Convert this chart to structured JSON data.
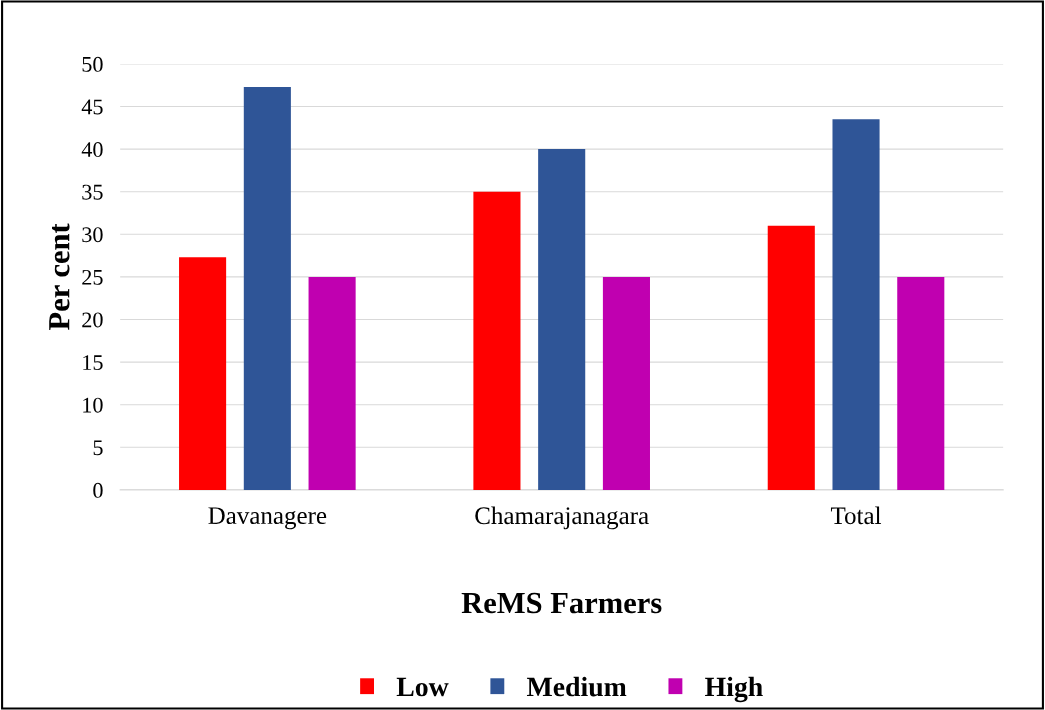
{
  "chart_data": {
    "type": "bar",
    "xlabel": "ReMS Farmers",
    "ylabel": "Per cent",
    "categories": [
      "Davanagere",
      "Chamarajanagara",
      "Total"
    ],
    "series": [
      {
        "name": "Low",
        "color": "#ff0000",
        "values": [
          27.3,
          35,
          31
        ]
      },
      {
        "name": "Medium",
        "color": "#2f5597",
        "values": [
          47.3,
          40,
          43.5
        ]
      },
      {
        "name": "High",
        "color": "#c000b0",
        "values": [
          25,
          25,
          25
        ]
      }
    ],
    "ylim": [
      0,
      50
    ],
    "yticks": [
      0,
      5,
      10,
      15,
      20,
      25,
      30,
      35,
      40,
      45,
      50
    ],
    "grid": "y",
    "legend": "bottom"
  }
}
